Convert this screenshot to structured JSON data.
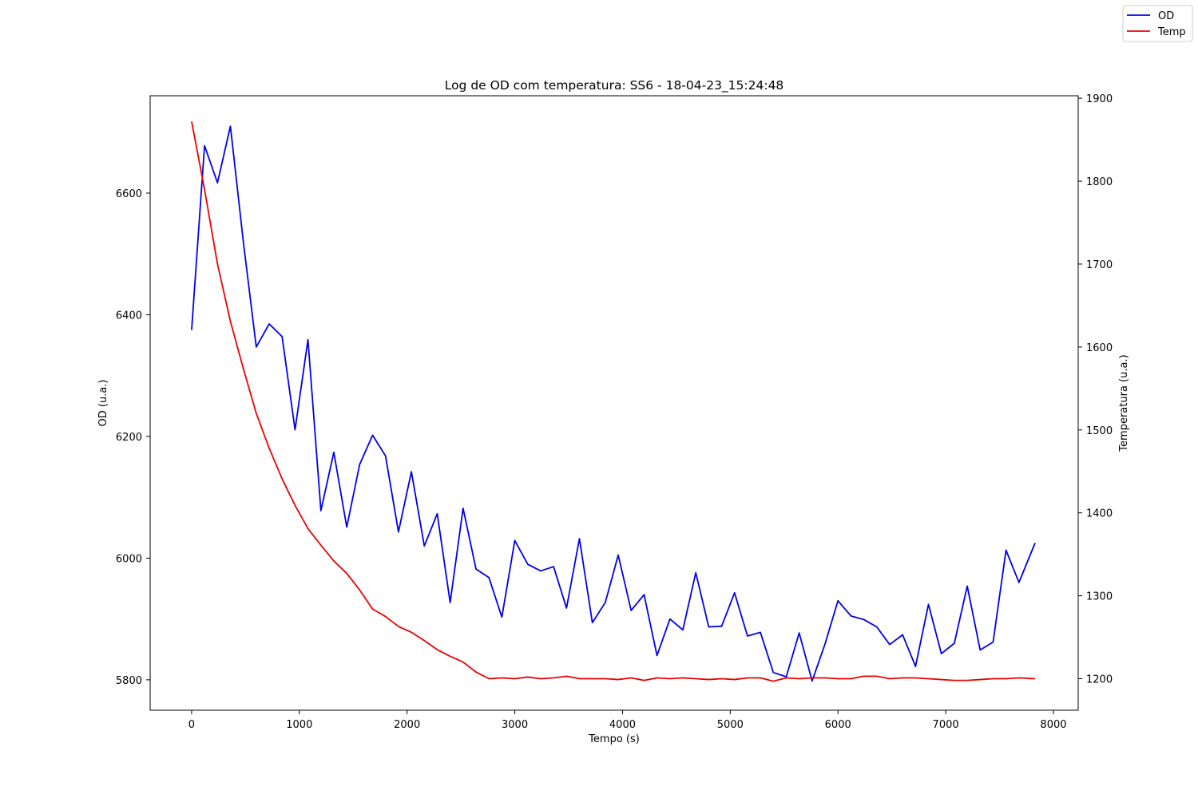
{
  "chart_data": {
    "type": "line",
    "title": "Log de OD com temperatura: SS6 - 18-04-23_15:24:48",
    "xlabel": "Tempo (s)",
    "ylabel": "OD (u.a.)",
    "y2label": "Temperatura (u.a.)",
    "xlim": [
      -385,
      8230
    ],
    "ylim": [
      5750,
      6760
    ],
    "y2lim": [
      1162,
      1903
    ],
    "xticks": [
      0,
      1000,
      2000,
      3000,
      4000,
      5000,
      6000,
      7000,
      8000
    ],
    "yticks": [
      5800,
      6000,
      6200,
      6400,
      6600
    ],
    "y2ticks": [
      1200,
      1300,
      1400,
      1500,
      1600,
      1700,
      1800,
      1900
    ],
    "grid": false,
    "legend_position": "top-right (outside figure corner)",
    "x": [
      0,
      120,
      240,
      360,
      480,
      600,
      720,
      840,
      960,
      1080,
      1200,
      1320,
      1440,
      1560,
      1680,
      1800,
      1920,
      2040,
      2160,
      2280,
      2400,
      2520,
      2640,
      2760,
      2880,
      3000,
      3120,
      3240,
      3360,
      3480,
      3600,
      3720,
      3840,
      3960,
      4080,
      4200,
      4320,
      4440,
      4560,
      4680,
      4800,
      4920,
      5040,
      5160,
      5280,
      5400,
      5520,
      5640,
      5760,
      5880,
      6000,
      6120,
      6240,
      6360,
      6480,
      6600,
      6720,
      6840,
      6960,
      7080,
      7200,
      7320,
      7440,
      7560,
      7680,
      7830
    ],
    "series": [
      {
        "name": "OD",
        "color": "#0000ee",
        "axis": "left",
        "values": [
          6375,
          6678,
          6617,
          6710,
          6520,
          6347,
          6385,
          6364,
          6211,
          6359,
          6078,
          6174,
          6051,
          6154,
          6202,
          6168,
          6043,
          6142,
          6020,
          6073,
          5927,
          6082,
          5982,
          5968,
          5903,
          6029,
          5990,
          5979,
          5986,
          5918,
          6032,
          5894,
          5927,
          6005,
          5914,
          5940,
          5840,
          5900,
          5882,
          5976,
          5887,
          5888,
          5943,
          5872,
          5878,
          5812,
          5805,
          5877,
          5798,
          5859,
          5930,
          5905,
          5899,
          5887,
          5858,
          5874,
          5822,
          5924,
          5843,
          5860,
          5954,
          5849,
          5862,
          6013,
          5960,
          6025
        ]
      },
      {
        "name": "Temp",
        "color": "#ee0000",
        "axis": "right",
        "values": [
          1872,
          1790,
          1700,
          1631,
          1574,
          1520,
          1478,
          1441,
          1409,
          1381,
          1361,
          1342,
          1327,
          1307,
          1284,
          1275,
          1263,
          1256,
          1246,
          1235,
          1227,
          1220,
          1208,
          1200,
          1201,
          1200,
          1202,
          1200,
          1201,
          1203,
          1200,
          1200,
          1200,
          1199,
          1201,
          1198,
          1201,
          1200,
          1201,
          1200,
          1199,
          1200,
          1199,
          1201,
          1201,
          1197,
          1201,
          1200,
          1201,
          1201,
          1200,
          1200,
          1203,
          1203,
          1200,
          1201,
          1201,
          1200,
          1199,
          1198,
          1198,
          1199,
          1200,
          1200,
          1201,
          1200
        ]
      }
    ]
  }
}
